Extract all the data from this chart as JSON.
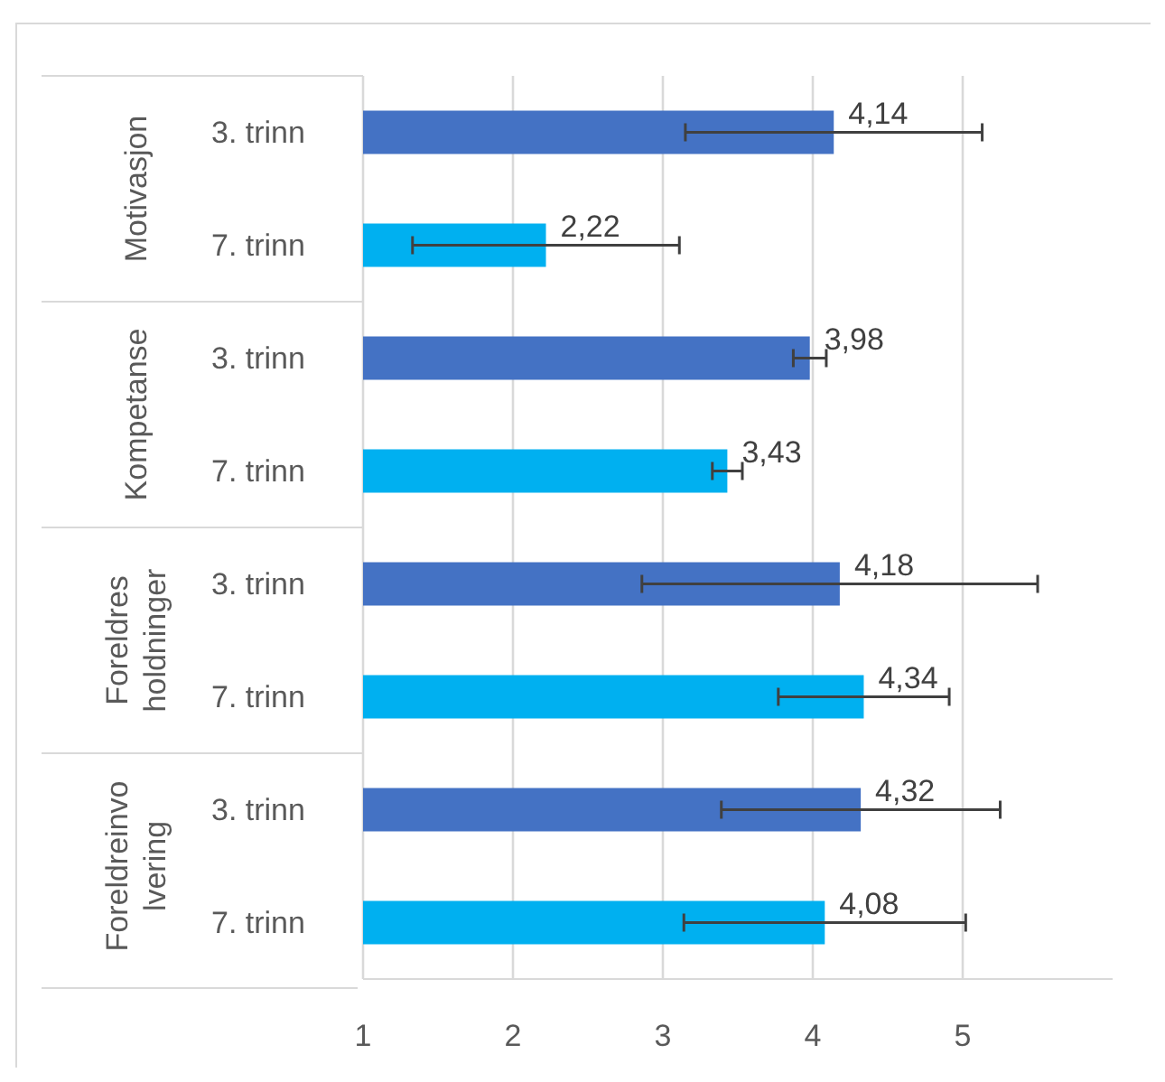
{
  "chart_data": {
    "type": "bar",
    "orientation": "horizontal",
    "categories": [
      "Motivasjon",
      "Kompetanse",
      "Foreldres holdninger",
      "Foreldreinvolvering"
    ],
    "series": [
      {
        "name": "3. trinn",
        "color": "#4472c4",
        "values": [
          4.14,
          3.98,
          4.18,
          4.32
        ],
        "errors": [
          0.99,
          0.11,
          1.32,
          0.93
        ],
        "value_labels": [
          "4,14",
          "3,98",
          "4,18",
          "4,32"
        ]
      },
      {
        "name": "7. trinn",
        "color": "#00b0f0",
        "values": [
          2.22,
          3.43,
          4.34,
          4.08
        ],
        "errors": [
          0.89,
          0.1,
          0.57,
          0.94
        ],
        "value_labels": [
          "2,22",
          "3,43",
          "4,34",
          "4,08"
        ]
      }
    ],
    "xlim": [
      1,
      6
    ],
    "xticks": [
      1,
      2,
      3,
      4,
      5
    ],
    "grid": "x"
  }
}
